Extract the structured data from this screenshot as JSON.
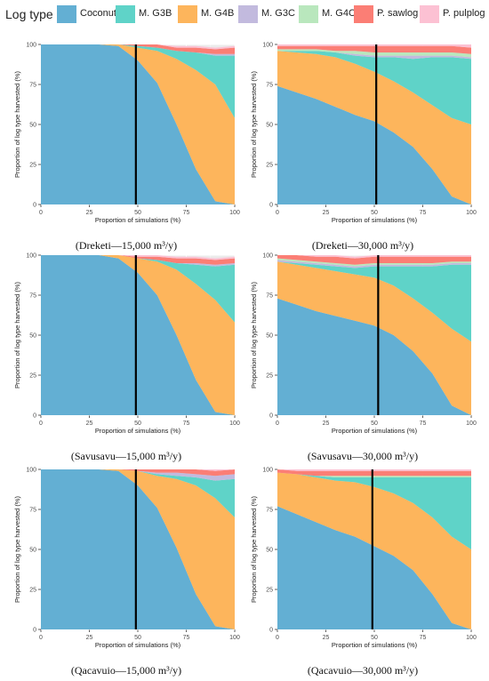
{
  "legend": {
    "title": "Log type",
    "items": [
      {
        "label": "Coconut",
        "color": "#63afd3"
      },
      {
        "label": "M. G3B",
        "color": "#5fd3c8"
      },
      {
        "label": "M. G4B",
        "color": "#fdb55c"
      },
      {
        "label": "M. G3C",
        "color": "#c2bade"
      },
      {
        "label": "M. G4C",
        "color": "#b9e7bd"
      },
      {
        "label": "P. sawlog",
        "color": "#fb7e75"
      },
      {
        "label": "P. pulplog",
        "color": "#fcc1d3"
      }
    ]
  },
  "chart_data": [
    {
      "type": "area",
      "caption": "(Dreketi—15,000 m³/y)",
      "xlabel": "Proportion of simulations (%)",
      "ylabel": "Proportion of log type harvested (%)",
      "xlim": [
        0,
        100
      ],
      "ylim": [
        0,
        100
      ],
      "xticks": [
        "0",
        "25",
        "50",
        "75",
        "100"
      ],
      "yticks": [
        "0",
        "25",
        "50",
        "75",
        "100"
      ],
      "grid": true,
      "stacked": true,
      "vline_x": 49,
      "x": [
        0,
        10,
        20,
        30,
        40,
        50,
        60,
        70,
        80,
        90,
        100
      ],
      "series": [
        {
          "name": "Coconut",
          "values": [
            100,
            100,
            100,
            100,
            99,
            90,
            76,
            50,
            22,
            2,
            0
          ]
        },
        {
          "name": "M. G4B",
          "values": [
            0,
            0,
            0,
            0,
            1,
            8,
            20,
            41,
            62,
            73,
            54
          ]
        },
        {
          "name": "M. G3B",
          "values": [
            0,
            0,
            0,
            0,
            0,
            1,
            2,
            5,
            11,
            18,
            39
          ]
        },
        {
          "name": "M. G3C",
          "values": [
            0,
            0,
            0,
            0,
            0,
            0,
            0,
            0,
            0,
            1,
            1
          ]
        },
        {
          "name": "M. G4C",
          "values": [
            0,
            0,
            0,
            0,
            0,
            0,
            0,
            0,
            0,
            0,
            0
          ]
        },
        {
          "name": "P. sawlog",
          "values": [
            0,
            0,
            0,
            0,
            0,
            1,
            2,
            2,
            3,
            3,
            4
          ]
        },
        {
          "name": "P. pulplog",
          "values": [
            0,
            0,
            0,
            0,
            0,
            0,
            0,
            1,
            1,
            1,
            1
          ]
        }
      ]
    },
    {
      "type": "area",
      "caption": "(Dreketi—30,000 m³/y)",
      "xlabel": "Proportion of simulations (%)",
      "ylabel": "Proportion of log type harvested (%)",
      "xlim": [
        0,
        100
      ],
      "ylim": [
        0,
        100
      ],
      "xticks": [
        "0",
        "25",
        "50",
        "75",
        "100"
      ],
      "yticks": [
        "0",
        "25",
        "50",
        "75",
        "100"
      ],
      "grid": true,
      "stacked": true,
      "vline_x": 51,
      "x": [
        0,
        10,
        20,
        30,
        40,
        50,
        60,
        70,
        80,
        90,
        100
      ],
      "series": [
        {
          "name": "Coconut",
          "values": [
            74,
            70,
            66,
            61,
            56,
            52,
            45,
            36,
            22,
            5,
            0
          ]
        },
        {
          "name": "M. G4B",
          "values": [
            22,
            25,
            28,
            31,
            32,
            31,
            32,
            34,
            40,
            49,
            50
          ]
        },
        {
          "name": "M. G3B",
          "values": [
            0,
            1,
            2,
            3,
            5,
            9,
            15,
            21,
            30,
            38,
            41
          ]
        },
        {
          "name": "M. G3C",
          "values": [
            0,
            0,
            0,
            0,
            1,
            1,
            1,
            2,
            1,
            1,
            1
          ]
        },
        {
          "name": "M. G4C",
          "values": [
            1,
            1,
            1,
            1,
            2,
            2,
            2,
            2,
            2,
            2,
            2
          ]
        },
        {
          "name": "P. sawlog",
          "values": [
            2,
            2,
            2,
            3,
            3,
            4,
            4,
            4,
            4,
            4,
            4
          ]
        },
        {
          "name": "P. pulplog",
          "values": [
            1,
            1,
            1,
            1,
            1,
            1,
            1,
            1,
            1,
            1,
            2
          ]
        }
      ]
    },
    {
      "type": "area",
      "caption": "(Savusavu—15,000 m³/y)",
      "xlabel": "Proportion of simulations (%)",
      "ylabel": "Proportion of log type harvested (%)",
      "xlim": [
        0,
        100
      ],
      "ylim": [
        0,
        100
      ],
      "xticks": [
        "0",
        "25",
        "50",
        "75",
        "100"
      ],
      "yticks": [
        "0",
        "25",
        "50",
        "75",
        "100"
      ],
      "grid": true,
      "stacked": true,
      "vline_x": 49,
      "x": [
        0,
        10,
        20,
        30,
        40,
        50,
        60,
        70,
        80,
        90,
        100
      ],
      "series": [
        {
          "name": "Coconut",
          "values": [
            100,
            100,
            100,
            100,
            98,
            89,
            75,
            50,
            22,
            2,
            0
          ]
        },
        {
          "name": "M. G4B",
          "values": [
            0,
            0,
            0,
            0,
            2,
            9,
            21,
            41,
            60,
            70,
            58
          ]
        },
        {
          "name": "M. G3B",
          "values": [
            0,
            0,
            0,
            0,
            0,
            0,
            1,
            4,
            12,
            21,
            36
          ]
        },
        {
          "name": "M. G3C",
          "values": [
            0,
            0,
            0,
            0,
            0,
            0,
            0,
            0,
            1,
            1,
            1
          ]
        },
        {
          "name": "M. G4C",
          "values": [
            0,
            0,
            0,
            0,
            0,
            0,
            0,
            0,
            0,
            0,
            0
          ]
        },
        {
          "name": "P. sawlog",
          "values": [
            0,
            0,
            0,
            0,
            0,
            1,
            2,
            3,
            3,
            3,
            3
          ]
        },
        {
          "name": "P. pulplog",
          "values": [
            0,
            0,
            0,
            0,
            0,
            1,
            1,
            1,
            1,
            1,
            1
          ]
        }
      ]
    },
    {
      "type": "area",
      "caption": "(Savusavu—30,000 m³/y)",
      "xlabel": "Proportion of simulations (%)",
      "ylabel": "Proportion of log type harvested (%)",
      "xlim": [
        0,
        100
      ],
      "ylim": [
        0,
        100
      ],
      "xticks": [
        "0",
        "25",
        "50",
        "75",
        "100"
      ],
      "yticks": [
        "0",
        "25",
        "50",
        "75",
        "100"
      ],
      "grid": true,
      "stacked": true,
      "vline_x": 52,
      "x": [
        0,
        10,
        20,
        30,
        40,
        50,
        60,
        70,
        80,
        90,
        100
      ],
      "series": [
        {
          "name": "Coconut",
          "values": [
            73,
            69,
            65,
            62,
            59,
            56,
            50,
            40,
            26,
            6,
            0
          ]
        },
        {
          "name": "M. G4B",
          "values": [
            23,
            25,
            27,
            28,
            29,
            30,
            31,
            33,
            38,
            48,
            46
          ]
        },
        {
          "name": "M. G3B",
          "values": [
            0,
            1,
            2,
            3,
            4,
            7,
            12,
            20,
            29,
            40,
            48
          ]
        },
        {
          "name": "M. G3C",
          "values": [
            1,
            1,
            1,
            1,
            1,
            1,
            1,
            1,
            1,
            1,
            1
          ]
        },
        {
          "name": "M. G4C",
          "values": [
            1,
            1,
            1,
            1,
            1,
            1,
            1,
            1,
            1,
            1,
            1
          ]
        },
        {
          "name": "P. sawlog",
          "values": [
            2,
            3,
            3,
            4,
            4,
            4,
            4,
            4,
            4,
            3,
            3
          ]
        },
        {
          "name": "P. pulplog",
          "values": [
            0,
            0,
            1,
            1,
            1,
            1,
            1,
            1,
            1,
            1,
            1
          ]
        }
      ]
    },
    {
      "type": "area",
      "caption": "(Qacavuio—15,000 m³/y)",
      "xlabel": "Proportion of simulations (%)",
      "ylabel": "Proportion of log type harvested (%)",
      "xlim": [
        0,
        100
      ],
      "ylim": [
        0,
        100
      ],
      "xticks": [
        "0",
        "25",
        "50",
        "75",
        "100"
      ],
      "yticks": [
        "0",
        "25",
        "50",
        "75",
        "100"
      ],
      "grid": true,
      "stacked": true,
      "vline_x": 49,
      "x": [
        0,
        10,
        20,
        30,
        40,
        50,
        60,
        70,
        80,
        90,
        100
      ],
      "series": [
        {
          "name": "Coconut",
          "values": [
            100,
            100,
            100,
            100,
            99,
            90,
            76,
            51,
            22,
            2,
            0
          ]
        },
        {
          "name": "M. G4B",
          "values": [
            0,
            0,
            0,
            0,
            1,
            9,
            20,
            43,
            68,
            80,
            70
          ]
        },
        {
          "name": "M. G3B",
          "values": [
            0,
            0,
            0,
            0,
            0,
            0,
            1,
            2,
            5,
            11,
            24
          ]
        },
        {
          "name": "M. G3C",
          "values": [
            0,
            0,
            0,
            0,
            0,
            0,
            1,
            2,
            2,
            3,
            3
          ]
        },
        {
          "name": "M. G4C",
          "values": [
            0,
            0,
            0,
            0,
            0,
            0,
            0,
            0,
            0,
            0,
            0
          ]
        },
        {
          "name": "P. sawlog",
          "values": [
            0,
            0,
            0,
            0,
            0,
            1,
            2,
            2,
            3,
            3,
            3
          ]
        },
        {
          "name": "P. pulplog",
          "values": [
            0,
            0,
            0,
            0,
            0,
            0,
            0,
            0,
            0,
            1,
            0
          ]
        }
      ]
    },
    {
      "type": "area",
      "caption": "(Qacavuio—30,000 m³/y)",
      "xlabel": "Proportion of simulations (%)",
      "ylabel": "Proportion of log type harvested (%)",
      "xlim": [
        0,
        100
      ],
      "ylim": [
        0,
        100
      ],
      "xticks": [
        "0",
        "25",
        "50",
        "75",
        "100"
      ],
      "yticks": [
        "0",
        "25",
        "50",
        "75",
        "100"
      ],
      "grid": true,
      "stacked": true,
      "vline_x": 49,
      "x": [
        0,
        10,
        20,
        30,
        40,
        50,
        60,
        70,
        80,
        90,
        100
      ],
      "series": [
        {
          "name": "Coconut",
          "values": [
            77,
            72,
            67,
            62,
            58,
            52,
            46,
            37,
            22,
            4,
            0
          ]
        },
        {
          "name": "M. G4B",
          "values": [
            21,
            25,
            28,
            31,
            34,
            37,
            39,
            42,
            48,
            54,
            50
          ]
        },
        {
          "name": "M. G3B",
          "values": [
            0,
            0,
            1,
            2,
            3,
            6,
            10,
            16,
            25,
            37,
            45
          ]
        },
        {
          "name": "M. G3C",
          "values": [
            0,
            0,
            0,
            0,
            0,
            0,
            0,
            0,
            0,
            0,
            0
          ]
        },
        {
          "name": "M. G4C",
          "values": [
            0,
            0,
            0,
            1,
            1,
            1,
            1,
            1,
            1,
            1,
            1
          ]
        },
        {
          "name": "P. sawlog",
          "values": [
            2,
            2,
            3,
            3,
            3,
            3,
            3,
            3,
            3,
            3,
            3
          ]
        },
        {
          "name": "P. pulplog",
          "values": [
            0,
            1,
            1,
            1,
            1,
            1,
            1,
            1,
            1,
            1,
            1
          ]
        }
      ]
    }
  ]
}
